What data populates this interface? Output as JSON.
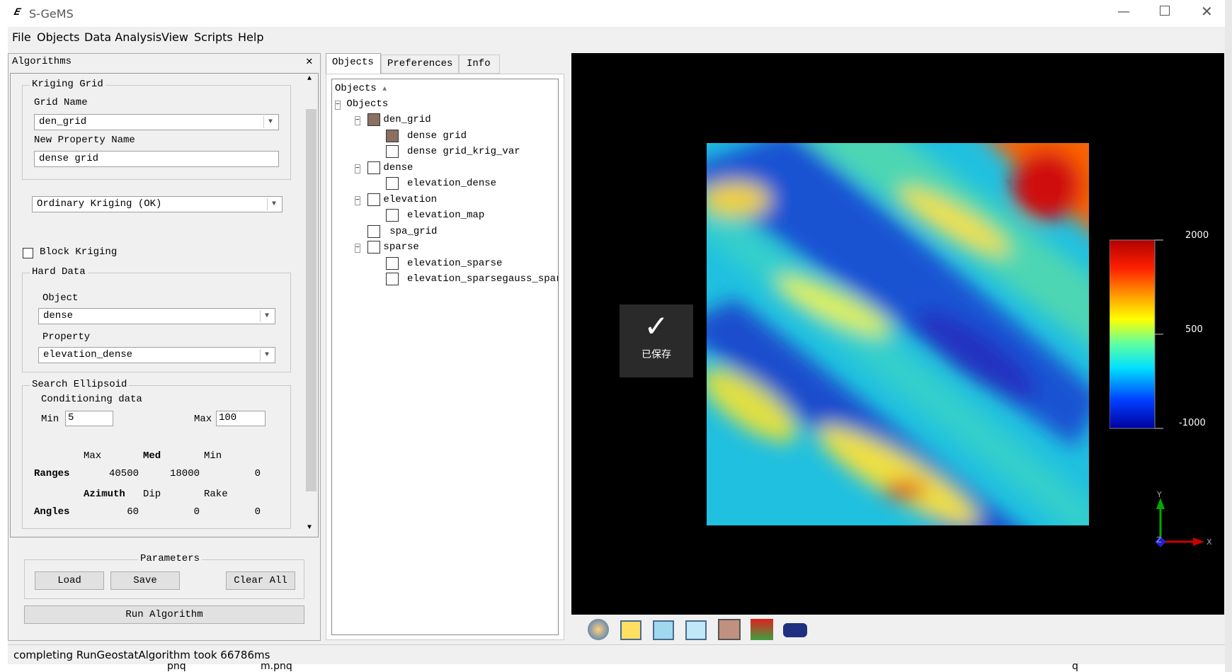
{
  "window": {
    "title": "S-GeMS"
  },
  "menu": [
    "File",
    "Objects",
    "Data Analysis",
    "View",
    "Scripts",
    "Help"
  ],
  "algorithms_panel": {
    "title": "Algorithms",
    "kriging_grid": {
      "legend": "Kriging Grid",
      "grid_name_label": "Grid Name",
      "grid_name": "den_grid",
      "new_property_label": "New Property Name",
      "new_property": "dense grid"
    },
    "kriging_type": "Ordinary Kriging (OK)",
    "block_kriging": "Block Kriging",
    "hard_data": {
      "legend": "Hard Data",
      "object_label": "Object",
      "object": "dense",
      "property_label": "Property",
      "property": "elevation_dense"
    },
    "search": {
      "legend": "Search Ellipsoid",
      "conditioning": "Conditioning data",
      "min_label": "Min",
      "min": "5",
      "max_label": "Max",
      "max": "100",
      "range_headers": [
        "Max",
        "Med",
        "Min"
      ],
      "ranges_label": "Ranges",
      "ranges": [
        "40500",
        "18000",
        "0"
      ],
      "angle_headers": [
        "Azimuth",
        "Dip",
        "Rake"
      ],
      "angles_label": "Angles",
      "angles": [
        "60",
        "0",
        "0"
      ]
    },
    "parameters": {
      "legend": "Parameters",
      "buttons": [
        "Load",
        "Save",
        "Clear All"
      ]
    },
    "run": "Run Algorithm"
  },
  "tabs": [
    "Objects",
    "Preferences",
    "Info"
  ],
  "tree": {
    "header": "Objects",
    "root": "Objects",
    "nodes": [
      {
        "label": "den_grid",
        "children": [
          "dense grid",
          "dense grid_krig_var"
        ]
      },
      {
        "label": "dense",
        "children": [
          "elevation_dense"
        ]
      },
      {
        "label": "elevation",
        "children": [
          "elevation_map"
        ]
      },
      {
        "label": "spa_grid",
        "children": []
      },
      {
        "label": "sparse",
        "children": [
          "elevation_sparse",
          "elevation_sparsegauss_sparse"
        ]
      }
    ]
  },
  "viewer": {
    "colorbar_labels": [
      "2000",
      "500",
      "-1000"
    ],
    "axes": [
      "Y",
      "Z",
      "X"
    ],
    "toast": "已保存"
  },
  "status": "completing RunGeostatAlgorithm took 66786ms",
  "desktop": [
    "pnq",
    "m.pnq",
    "q"
  ]
}
